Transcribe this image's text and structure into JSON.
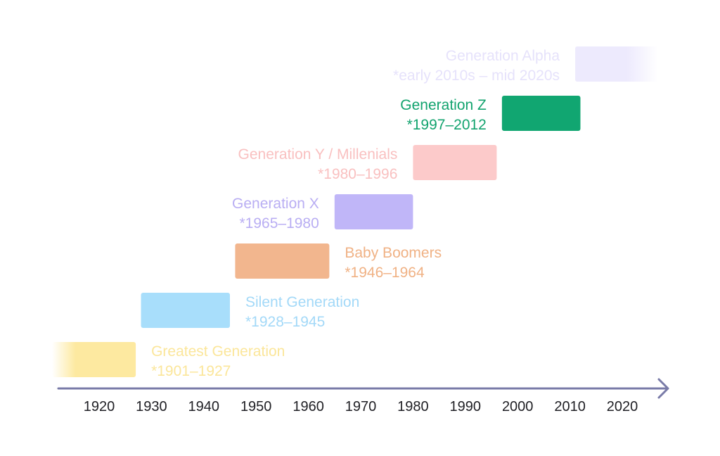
{
  "chart_data": {
    "type": "timeline",
    "x_ticks": [
      "1920",
      "1930",
      "1940",
      "1950",
      "1960",
      "1970",
      "1980",
      "1990",
      "2000",
      "2010",
      "2020"
    ],
    "xlim": [
      1909,
      2027
    ],
    "generations": [
      {
        "name": "Greatest Generation",
        "range_label": "*1901–1927",
        "start": 1901,
        "end": 1927,
        "color": "#FDE9A0",
        "label_side": "right",
        "fade": "left"
      },
      {
        "name": "Silent Generation",
        "range_label": "*1928–1945",
        "start": 1928,
        "end": 1945,
        "color": "#A8DEFB",
        "label_side": "right",
        "fade": "none"
      },
      {
        "name": "Baby Boomers",
        "range_label": "*1946–1964",
        "start": 1946,
        "end": 1964,
        "color": "#F2B68E",
        "label_side": "right",
        "fade": "none"
      },
      {
        "name": "Generation X",
        "range_label": "*1965–1980",
        "start": 1965,
        "end": 1980,
        "color": "#C0B6F8",
        "label_side": "left",
        "fade": "none"
      },
      {
        "name": "Generation Y / Millenials",
        "range_label": "*1980–1996",
        "start": 1980,
        "end": 1996,
        "color": "#FCCACA",
        "label_side": "left",
        "fade": "none"
      },
      {
        "name": "Generation Z",
        "range_label": "*1997–2012",
        "start": 1997,
        "end": 2012,
        "color": "#11A671",
        "label_side": "left",
        "fade": "none"
      },
      {
        "name": "Generation Alpha",
        "range_label": "*early 2010s – mid 2020s",
        "start": 2011,
        "end": 2027,
        "color": "#EDEAFD",
        "label_side": "left",
        "fade": "right"
      }
    ],
    "label_colors": {
      "Greatest Generation": "#FBE69A",
      "Silent Generation": "#A3D9F8",
      "Baby Boomers": "#F0B285",
      "Generation X": "#B9AEF3",
      "Generation Y / Millenials": "#F9C0C0",
      "Generation Z": "#12A36E",
      "Generation Alpha": "#E6E2FB"
    },
    "axis_color": "#797BA8"
  }
}
